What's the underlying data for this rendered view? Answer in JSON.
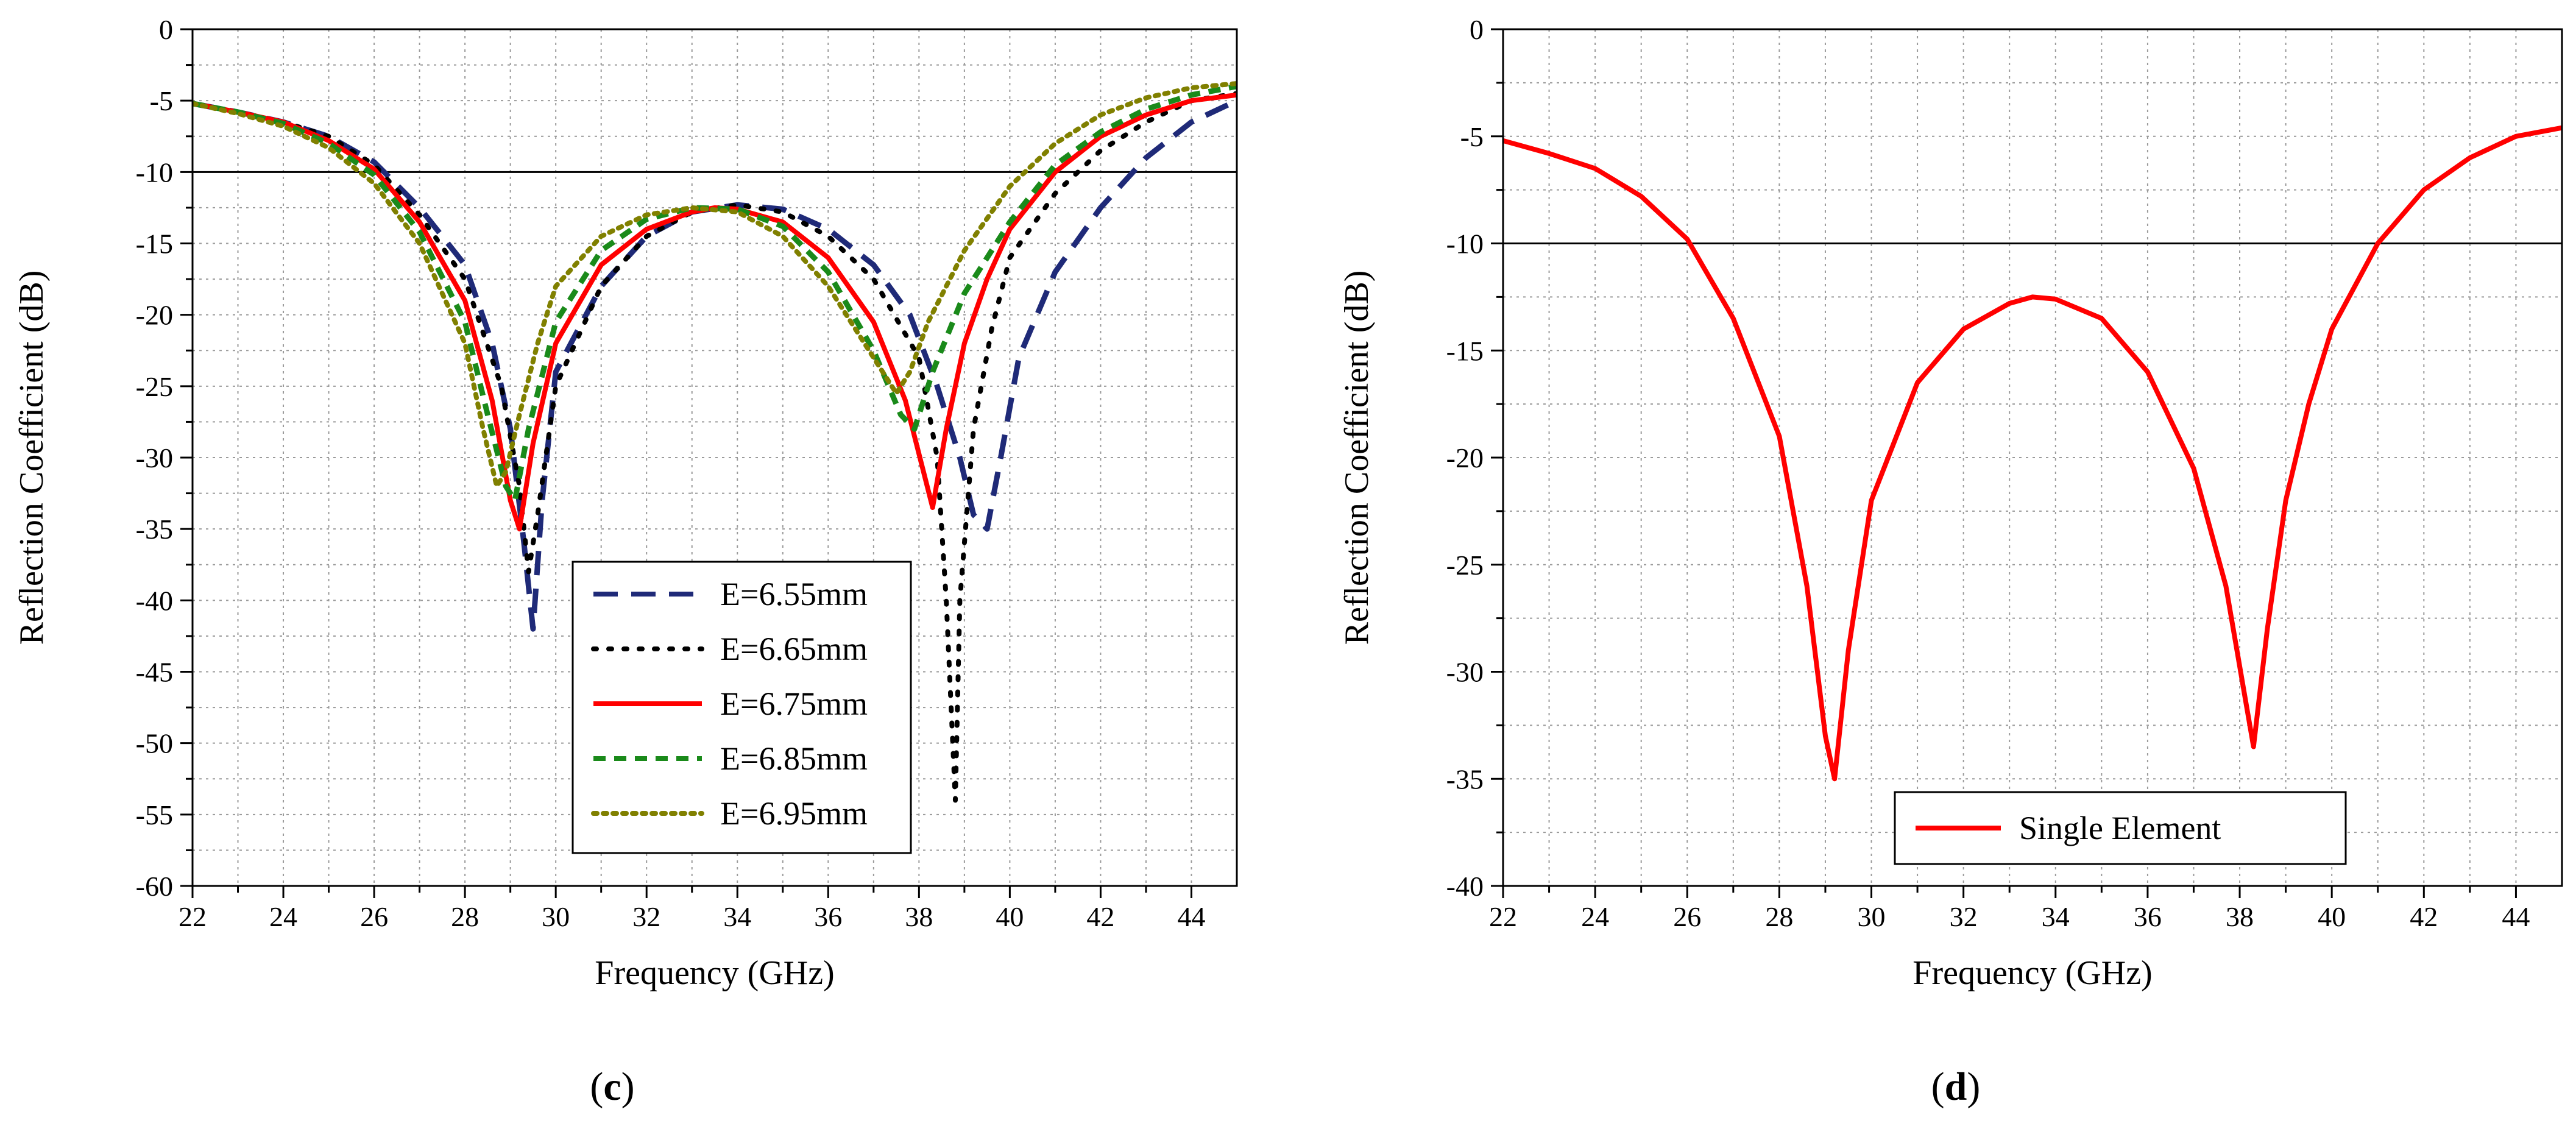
{
  "colors": {
    "e655": "#1f2a78",
    "e665": "#000000",
    "e675": "#ff0000",
    "e685": "#1a8a1a",
    "e695": "#808000",
    "threshold": "#000000",
    "grid": "#9a9a9a"
  },
  "chart_data": [
    {
      "type": "line",
      "panel_label": "c",
      "xlabel": "Frequency (GHz)",
      "ylabel": "Reflection Coefficient (dB)",
      "xlim": [
        22,
        45
      ],
      "ylim": [
        -60,
        0
      ],
      "x_ticks": [
        "22",
        "24",
        "26",
        "28",
        "30",
        "32",
        "34",
        "36",
        "38",
        "40",
        "42",
        "44"
      ],
      "y_ticks": [
        "0",
        "-5",
        "-10",
        "-15",
        "-20",
        "-25",
        "-30",
        "-35",
        "-40",
        "-45",
        "-50",
        "-55",
        "-60"
      ],
      "grid": true,
      "reference_line_db": -10,
      "legend_position": "lower-right",
      "series": [
        {
          "name": "E=6.55mm",
          "style": "dashed",
          "color_key": "e655",
          "x": [
            22,
            23,
            24,
            25,
            26,
            27,
            28,
            28.6,
            29,
            29.3,
            29.5,
            29.7,
            30,
            31,
            32,
            33,
            34,
            35,
            36,
            37,
            37.8,
            38.4,
            38.9,
            39.2,
            39.5,
            39.8,
            40.2,
            41,
            42,
            43,
            44,
            45
          ],
          "y": [
            -5.2,
            -5.8,
            -6.5,
            -7.5,
            -9.3,
            -12.5,
            -16.5,
            -22,
            -28,
            -36,
            -42,
            -33,
            -24,
            -18,
            -14.5,
            -12.8,
            -12.3,
            -12.6,
            -14,
            -16.5,
            -20,
            -25,
            -30,
            -34,
            -35,
            -30,
            -23,
            -17,
            -12.5,
            -9,
            -6.5,
            -5
          ]
        },
        {
          "name": "E=6.65mm",
          "style": "dotted",
          "color_key": "e665",
          "x": [
            22,
            23,
            24,
            25,
            26,
            27,
            28,
            28.8,
            29.2,
            29.4,
            29.6,
            30,
            31,
            32,
            33,
            34,
            35,
            36,
            37,
            38,
            38.4,
            38.6,
            38.8,
            38.9,
            39.2,
            39.6,
            40,
            41,
            42,
            43,
            44,
            45
          ],
          "y": [
            -5.2,
            -5.8,
            -6.5,
            -7.5,
            -9.5,
            -13,
            -17.5,
            -25,
            -32,
            -38,
            -34,
            -25,
            -18,
            -14.5,
            -12.8,
            -12.3,
            -12.8,
            -14.5,
            -17.5,
            -23,
            -30,
            -40,
            -54,
            -40,
            -28,
            -21,
            -16,
            -11.5,
            -8.5,
            -6.5,
            -5,
            -4.5
          ]
        },
        {
          "name": "E=6.75mm",
          "style": "solid",
          "color_key": "e675",
          "x": [
            22,
            23,
            24,
            25,
            26,
            27,
            28,
            28.6,
            29,
            29.2,
            29.5,
            30,
            31,
            32,
            33,
            33.5,
            34,
            35,
            36,
            37,
            37.7,
            38.1,
            38.3,
            38.6,
            39,
            39.5,
            40,
            41,
            42,
            43,
            44,
            45
          ],
          "y": [
            -5.2,
            -5.8,
            -6.5,
            -7.8,
            -9.8,
            -13.5,
            -19,
            -26,
            -33,
            -35,
            -29,
            -22,
            -16.5,
            -14,
            -12.8,
            -12.5,
            -12.6,
            -13.5,
            -16,
            -20.5,
            -26,
            -31,
            -33.5,
            -28,
            -22,
            -17.5,
            -14,
            -10,
            -7.5,
            -6,
            -5,
            -4.6
          ]
        },
        {
          "name": "E=6.85mm",
          "style": "dashed-short",
          "color_key": "e685",
          "x": [
            22,
            23,
            24,
            25,
            26,
            27,
            28,
            28.5,
            28.9,
            29.1,
            29.4,
            30,
            31,
            32,
            33,
            34,
            35,
            36,
            37,
            37.6,
            37.9,
            38.3,
            39,
            40,
            41,
            42,
            43,
            44,
            45
          ],
          "y": [
            -5.2,
            -5.8,
            -6.6,
            -8,
            -10.2,
            -14.2,
            -20.5,
            -27,
            -32,
            -33,
            -28,
            -20.5,
            -15.5,
            -13.3,
            -12.5,
            -12.6,
            -13.8,
            -17,
            -22.5,
            -27,
            -28,
            -24,
            -18.5,
            -13.5,
            -9.5,
            -7.2,
            -5.6,
            -4.6,
            -4
          ]
        },
        {
          "name": "E=6.95mm",
          "style": "dotted-dense",
          "color_key": "e695",
          "x": [
            22,
            23,
            24,
            25,
            26,
            27,
            28,
            28.4,
            28.7,
            28.9,
            29.2,
            29.6,
            30,
            31,
            32,
            33,
            34,
            35,
            36,
            37,
            37.5,
            37.8,
            38.2,
            39,
            40,
            41,
            42,
            43,
            44,
            45
          ],
          "y": [
            -5.2,
            -5.9,
            -6.8,
            -8.3,
            -10.8,
            -15,
            -22,
            -28,
            -32,
            -31,
            -27,
            -22,
            -18,
            -14.5,
            -13,
            -12.5,
            -12.8,
            -14.5,
            -18,
            -23,
            -25.5,
            -24,
            -20.5,
            -15.5,
            -11,
            -8,
            -6,
            -4.8,
            -4.1,
            -3.8
          ]
        }
      ]
    },
    {
      "type": "line",
      "panel_label": "d",
      "xlabel": "Frequency (GHz)",
      "ylabel": "Reflection Coefficient (dB)",
      "xlim": [
        22,
        45
      ],
      "ylim": [
        -40,
        0
      ],
      "x_ticks": [
        "22",
        "24",
        "26",
        "28",
        "30",
        "32",
        "34",
        "36",
        "38",
        "40",
        "42",
        "44"
      ],
      "y_ticks": [
        "0",
        "-5",
        "-10",
        "-15",
        "-20",
        "-25",
        "-30",
        "-35",
        "-40"
      ],
      "grid": true,
      "reference_line_db": -10,
      "legend_position": "bottom-center",
      "series": [
        {
          "name": "Single Element",
          "style": "solid",
          "color_key": "e675",
          "x": [
            22,
            23,
            24,
            25,
            26,
            27,
            28,
            28.6,
            29,
            29.2,
            29.5,
            30,
            31,
            32,
            33,
            33.5,
            34,
            35,
            36,
            37,
            37.7,
            38.1,
            38.3,
            38.6,
            39,
            39.5,
            40,
            41,
            42,
            43,
            44,
            45
          ],
          "y": [
            -5.2,
            -5.8,
            -6.5,
            -7.8,
            -9.8,
            -13.5,
            -19,
            -26,
            -33,
            -35,
            -29,
            -22,
            -16.5,
            -14,
            -12.8,
            -12.5,
            -12.6,
            -13.5,
            -16,
            -20.5,
            -26,
            -31,
            -33.5,
            -28,
            -22,
            -17.5,
            -14,
            -10,
            -7.5,
            -6,
            -5,
            -4.6
          ]
        }
      ]
    }
  ]
}
